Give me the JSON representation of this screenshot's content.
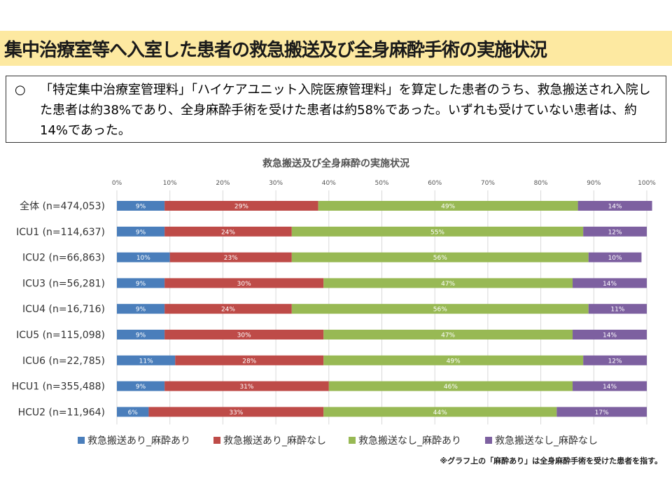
{
  "page": {
    "title": "集中治療室等へ入室した患者の救急搬送及び全身麻酔手術の実施状況",
    "summary_bullet": "○",
    "summary_text": "「特定集中治療室管理料」「ハイケアユニット入院医療管理料」を算定した患者のうち、救急搬送され入院した患者は約38%であり、全身麻酔手術を受けた患者は約58%であった。いずれも受けていない患者は、約14%であった。",
    "footnote": "※グラフ上の「麻酔あり」は全身麻酔手術を受けた患者を指す。"
  },
  "chart_data": {
    "type": "bar",
    "orientation": "horizontal",
    "stacked": true,
    "title": "救急搬送及び全身麻酔の実施状況",
    "x_ticks": [
      "0%",
      "10%",
      "20%",
      "30%",
      "40%",
      "50%",
      "60%",
      "70%",
      "80%",
      "90%",
      "100%"
    ],
    "xlim": [
      0,
      100
    ],
    "grid": true,
    "legend_position": "bottom",
    "categories": [
      "全体 (n=474,053)",
      "ICU1 (n=114,637)",
      "ICU2 (n=66,863)",
      "ICU3 (n=56,281)",
      "ICU4 (n=16,716)",
      "ICU5 (n=115,098)",
      "ICU6 (n=22,785)",
      "HCU1 (n=355,488)",
      "HCU2 (n=11,964)"
    ],
    "series": [
      {
        "name": "救急搬送あり_麻酔あり",
        "color": "#4a7ebb",
        "values": [
          9,
          9,
          10,
          9,
          9,
          9,
          11,
          9,
          6
        ],
        "labels": [
          "9%",
          "9%",
          "10%",
          "9%",
          "9%",
          "9%",
          "11%",
          "9%",
          "6%"
        ]
      },
      {
        "name": "救急搬送あり_麻酔なし",
        "color": "#be4b48",
        "values": [
          29,
          24,
          23,
          30,
          24,
          30,
          28,
          31,
          33
        ],
        "labels": [
          "29%",
          "24%",
          "23%",
          "30%",
          "24%",
          "30%",
          "28%",
          "31%",
          "33%"
        ]
      },
      {
        "name": "救急搬送なし_麻酔あり",
        "color": "#98b954",
        "values": [
          49,
          55,
          56,
          47,
          56,
          47,
          49,
          46,
          44
        ],
        "labels": [
          "49%",
          "55%",
          "56%",
          "47%",
          "56%",
          "47%",
          "49%",
          "46%",
          "44%"
        ]
      },
      {
        "name": "救急搬送なし_麻酔なし",
        "color": "#7d60a0",
        "values": [
          14,
          12,
          10,
          14,
          11,
          14,
          12,
          14,
          17
        ],
        "labels": [
          "14%",
          "12%",
          "10%",
          "14%",
          "11%",
          "14%",
          "12%",
          "14%",
          "17%"
        ]
      }
    ]
  }
}
